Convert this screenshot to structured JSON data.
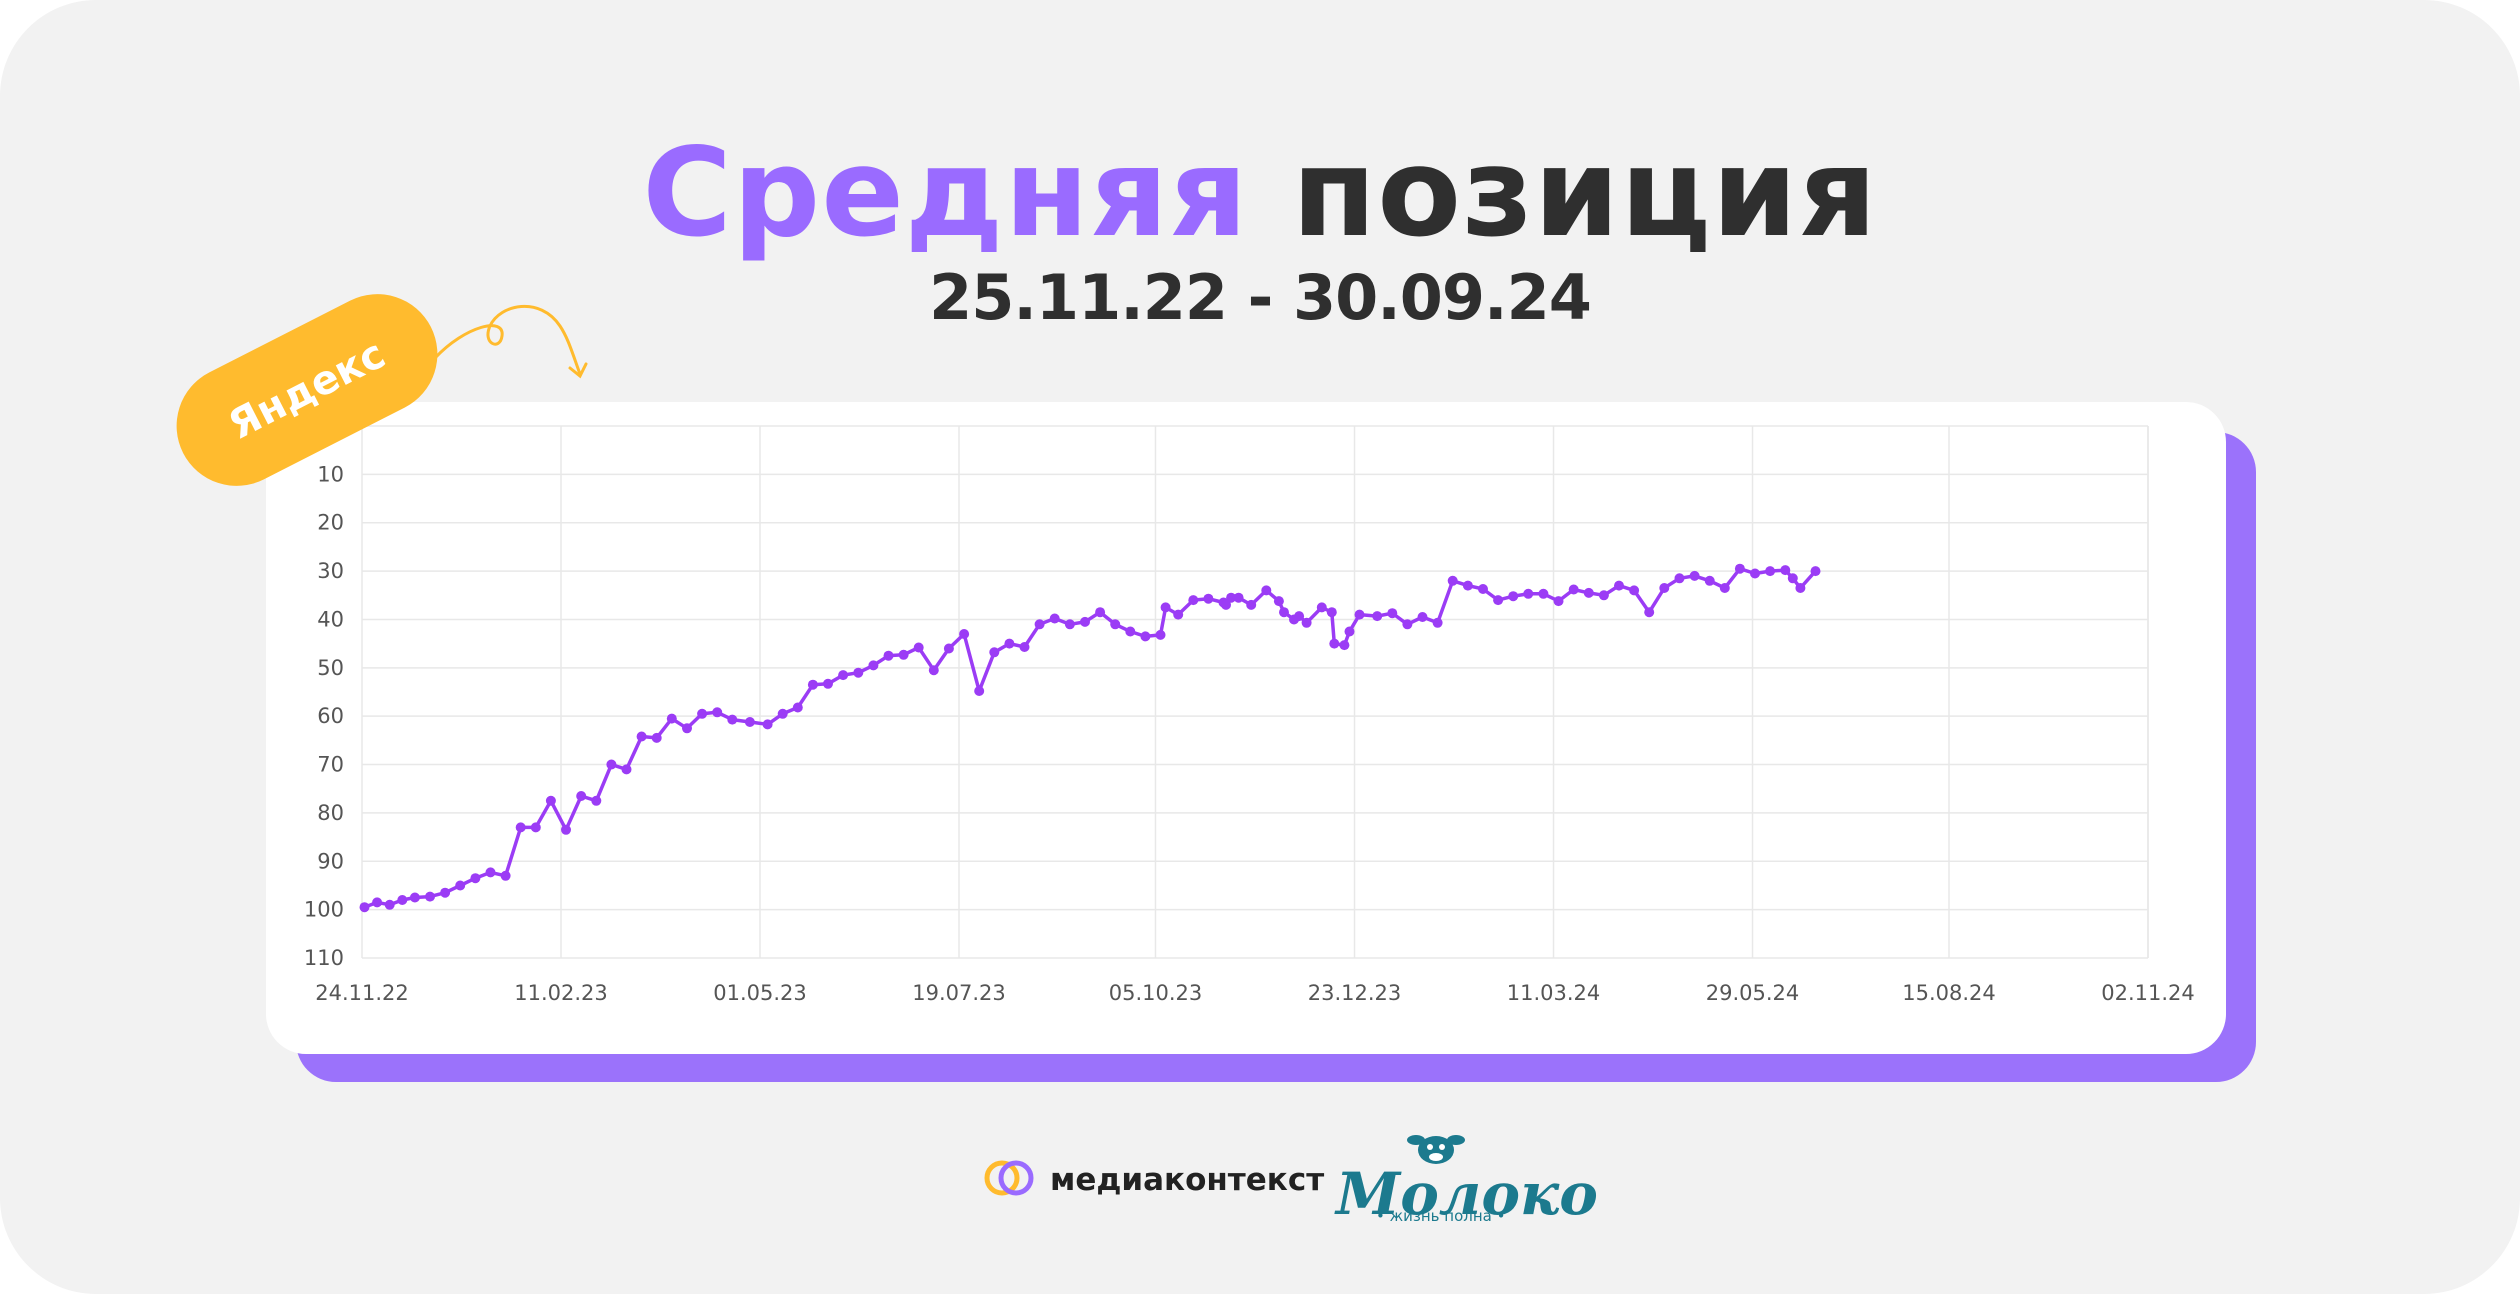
{
  "header": {
    "title_accent": "Средняя",
    "title_rest": "позиция",
    "period": "25.11.22 - 30.09.24"
  },
  "tag": {
    "label": "Яндекс"
  },
  "colors": {
    "accent": "#9a6bff",
    "line": "#9b3cf5",
    "tag": "#ffbb2e",
    "shadow": "#9b72fb"
  },
  "chart_data": {
    "type": "line",
    "title": "",
    "xlabel": "",
    "ylabel": "",
    "y_inverted": true,
    "ylim": [
      110,
      0
    ],
    "yticks": [
      10,
      20,
      30,
      40,
      50,
      60,
      70,
      80,
      90,
      100,
      110
    ],
    "xticks": [
      "24.11.22",
      "11.02.23",
      "01.05.23",
      "19.07.23",
      "05.10.23",
      "23.12.23",
      "11.03.24",
      "29.05.24",
      "15.08.24",
      "02.11.24"
    ],
    "xlim": [
      "2022-11-24",
      "2024-11-02"
    ],
    "grid": true,
    "series": [
      {
        "points": [
          [
            "2022-11-25",
            99.5
          ],
          [
            "2022-11-30",
            98.5
          ],
          [
            "2022-12-05",
            99
          ],
          [
            "2022-12-10",
            98
          ],
          [
            "2022-12-15",
            97.5
          ],
          [
            "2022-12-21",
            97.3
          ],
          [
            "2022-12-27",
            96.5
          ],
          [
            "2023-01-02",
            95
          ],
          [
            "2023-01-08",
            93.5
          ],
          [
            "2023-01-14",
            92.3
          ],
          [
            "2023-01-20",
            93
          ],
          [
            "2023-01-26",
            83
          ],
          [
            "2023-02-01",
            83
          ],
          [
            "2023-02-07",
            77.5
          ],
          [
            "2023-02-13",
            83.5
          ],
          [
            "2023-02-19",
            76.5
          ],
          [
            "2023-02-25",
            77.5
          ],
          [
            "2023-03-03",
            70
          ],
          [
            "2023-03-09",
            71
          ],
          [
            "2023-03-15",
            64.2
          ],
          [
            "2023-03-21",
            64.5
          ],
          [
            "2023-03-27",
            60.5
          ],
          [
            "2023-04-02",
            62.5
          ],
          [
            "2023-04-08",
            59.5
          ],
          [
            "2023-04-14",
            59.2
          ],
          [
            "2023-04-20",
            60.7
          ],
          [
            "2023-04-27",
            61.2
          ],
          [
            "2023-05-04",
            61.7
          ],
          [
            "2023-05-10",
            59.5
          ],
          [
            "2023-05-16",
            58.2
          ],
          [
            "2023-05-22",
            53.5
          ],
          [
            "2023-05-28",
            53.3
          ],
          [
            "2023-06-03",
            51.5
          ],
          [
            "2023-06-09",
            51
          ],
          [
            "2023-06-15",
            49.5
          ],
          [
            "2023-06-21",
            47.5
          ],
          [
            "2023-06-27",
            47.3
          ],
          [
            "2023-07-03",
            45.8
          ],
          [
            "2023-07-09",
            50.5
          ],
          [
            "2023-07-15",
            46
          ],
          [
            "2023-07-21",
            43
          ],
          [
            "2023-07-27",
            54.8
          ],
          [
            "2023-08-02",
            46.8
          ],
          [
            "2023-08-08",
            45
          ],
          [
            "2023-08-14",
            45.7
          ],
          [
            "2023-08-20",
            41
          ],
          [
            "2023-08-26",
            39.8
          ],
          [
            "2023-09-01",
            41
          ],
          [
            "2023-09-07",
            40.5
          ],
          [
            "2023-09-13",
            38.5
          ],
          [
            "2023-09-19",
            41
          ],
          [
            "2023-09-25",
            42.5
          ],
          [
            "2023-10-01",
            43.5
          ],
          [
            "2023-10-07",
            43.2
          ],
          [
            "2023-10-09",
            37.5
          ],
          [
            "2023-10-14",
            39
          ],
          [
            "2023-10-20",
            36
          ],
          [
            "2023-10-26",
            35.7
          ],
          [
            "2023-11-01",
            36.5
          ],
          [
            "2023-11-02",
            37
          ],
          [
            "2023-11-04",
            35.5
          ],
          [
            "2023-11-07",
            35.5
          ],
          [
            "2023-11-12",
            37
          ],
          [
            "2023-11-18",
            34
          ],
          [
            "2023-11-23",
            36.2
          ],
          [
            "2023-11-25",
            38.5
          ],
          [
            "2023-11-29",
            40
          ],
          [
            "2023-12-01",
            39.3
          ],
          [
            "2023-12-04",
            40.7
          ],
          [
            "2023-12-10",
            37.5
          ],
          [
            "2023-12-15",
            45
          ],
          [
            "2023-12-14",
            38.5
          ],
          [
            "2023-12-19",
            45.3
          ],
          [
            "2023-12-21",
            42.5
          ],
          [
            "2023-12-25",
            39
          ],
          [
            "2024-01-01",
            39.3
          ],
          [
            "2024-01-07",
            38.7
          ],
          [
            "2024-01-13",
            41
          ],
          [
            "2024-01-19",
            39.5
          ],
          [
            "2024-01-25",
            40.7
          ],
          [
            "2024-01-31",
            32
          ],
          [
            "2024-02-06",
            33
          ],
          [
            "2024-02-12",
            33.7
          ],
          [
            "2024-02-18",
            36
          ],
          [
            "2024-02-24",
            35.2
          ],
          [
            "2024-03-01",
            34.7
          ],
          [
            "2024-03-07",
            34.7
          ],
          [
            "2024-03-13",
            36.2
          ],
          [
            "2024-03-19",
            33.8
          ],
          [
            "2024-03-25",
            34.5
          ],
          [
            "2024-03-31",
            35
          ],
          [
            "2024-04-06",
            33
          ],
          [
            "2024-04-12",
            34
          ],
          [
            "2024-04-18",
            38.5
          ],
          [
            "2024-04-24",
            33.5
          ],
          [
            "2024-04-30",
            31.5
          ],
          [
            "2024-05-06",
            31
          ],
          [
            "2024-05-12",
            32
          ],
          [
            "2024-05-18",
            33.5
          ],
          [
            "2024-05-24",
            29.5
          ],
          [
            "2024-05-30",
            30.5
          ],
          [
            "2024-06-05",
            30
          ],
          [
            "2024-06-11",
            29.8
          ],
          [
            "2024-06-14",
            31.5
          ],
          [
            "2024-06-17",
            33.5
          ],
          [
            "2024-06-23",
            30
          ]
        ]
      }
    ]
  },
  "footer": {
    "mk_name": "медиаконтекст",
    "milk_name": "Молоко",
    "milk_tagline": "• жизнь полна •"
  }
}
